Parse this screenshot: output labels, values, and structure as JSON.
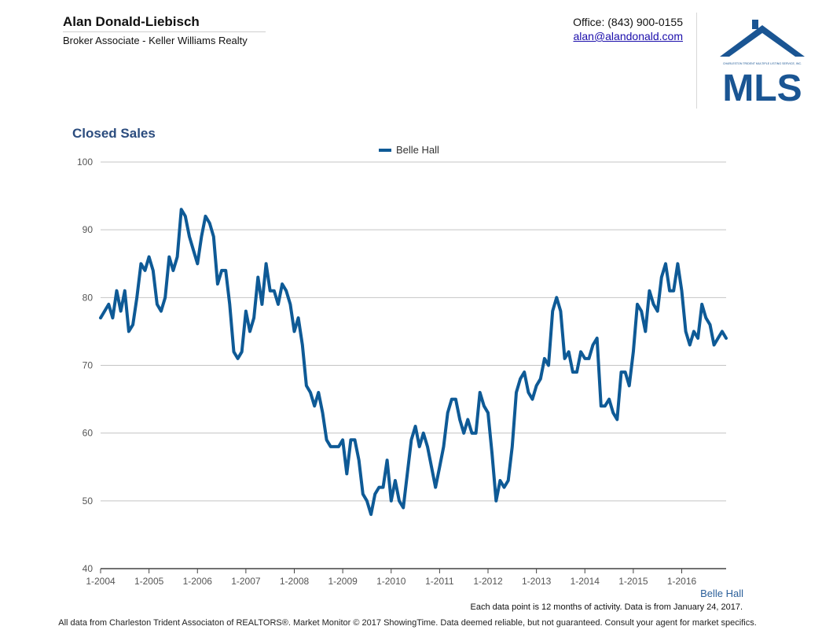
{
  "header": {
    "agent_name": "Alan Donald-Liebisch",
    "agent_title": "Broker Associate - Keller Williams Realty",
    "office": "Office: (843) 900-0155",
    "email": "alan@alandonald.com"
  },
  "logo": {
    "wordmark": "MLS",
    "tagline": "CHARLESTON TRIDENT MULTIPLE LISTING SERVICE, INC.",
    "color": "#1a5593"
  },
  "chart_data": {
    "type": "line",
    "title": "Closed Sales",
    "xlabel": "",
    "ylabel": "",
    "ylim": [
      40,
      100
    ],
    "yticks": [
      40,
      50,
      60,
      70,
      80,
      90,
      100
    ],
    "xtick_labels": [
      "1-2004",
      "1-2005",
      "1-2006",
      "1-2007",
      "1-2008",
      "1-2009",
      "1-2010",
      "1-2011",
      "1-2012",
      "1-2013",
      "1-2014",
      "1-2015",
      "1-2016"
    ],
    "grid": true,
    "legend_position": "top-center",
    "line_color": "#0e5a96",
    "series": [
      {
        "name": "Belle Hall",
        "start": "1-2004",
        "values": [
          77,
          78,
          79,
          77,
          81,
          78,
          81,
          75,
          76,
          80,
          85,
          84,
          86,
          84,
          79,
          78,
          80,
          86,
          84,
          86,
          93,
          92,
          89,
          87,
          85,
          89,
          92,
          91,
          89,
          82,
          84,
          84,
          79,
          72,
          71,
          72,
          78,
          75,
          77,
          83,
          79,
          85,
          81,
          81,
          79,
          82,
          81,
          79,
          75,
          77,
          73,
          67,
          66,
          64,
          66,
          63,
          59,
          58,
          58,
          58,
          59,
          54,
          59,
          59,
          56,
          51,
          50,
          48,
          51,
          52,
          52,
          56,
          50,
          53,
          50,
          49,
          54,
          59,
          61,
          58,
          60,
          58,
          55,
          52,
          55,
          58,
          63,
          65,
          65,
          62,
          60,
          62,
          60,
          60,
          66,
          64,
          63,
          57,
          50,
          53,
          52,
          53,
          58,
          66,
          68,
          69,
          66,
          65,
          67,
          68,
          71,
          70,
          78,
          80,
          78,
          71,
          72,
          69,
          69,
          72,
          71,
          71,
          73,
          74,
          64,
          64,
          65,
          63,
          62,
          69,
          69,
          67,
          72,
          79,
          78,
          75,
          81,
          79,
          78,
          83,
          85,
          81,
          81,
          85,
          81,
          75,
          73,
          75,
          74,
          79,
          77,
          76,
          73,
          74,
          75,
          74
        ]
      }
    ],
    "series_label": "Belle Hall"
  },
  "notes": {
    "data_note": "Each data point is 12 months of activity. Data is from January 24, 2017.",
    "footer": "All data from Charleston Trident Associaton of REALTORS®. Market Monitor © 2017 ShowingTime. Data deemed reliable, but not guaranteed. Consult your agent for market specifics."
  }
}
